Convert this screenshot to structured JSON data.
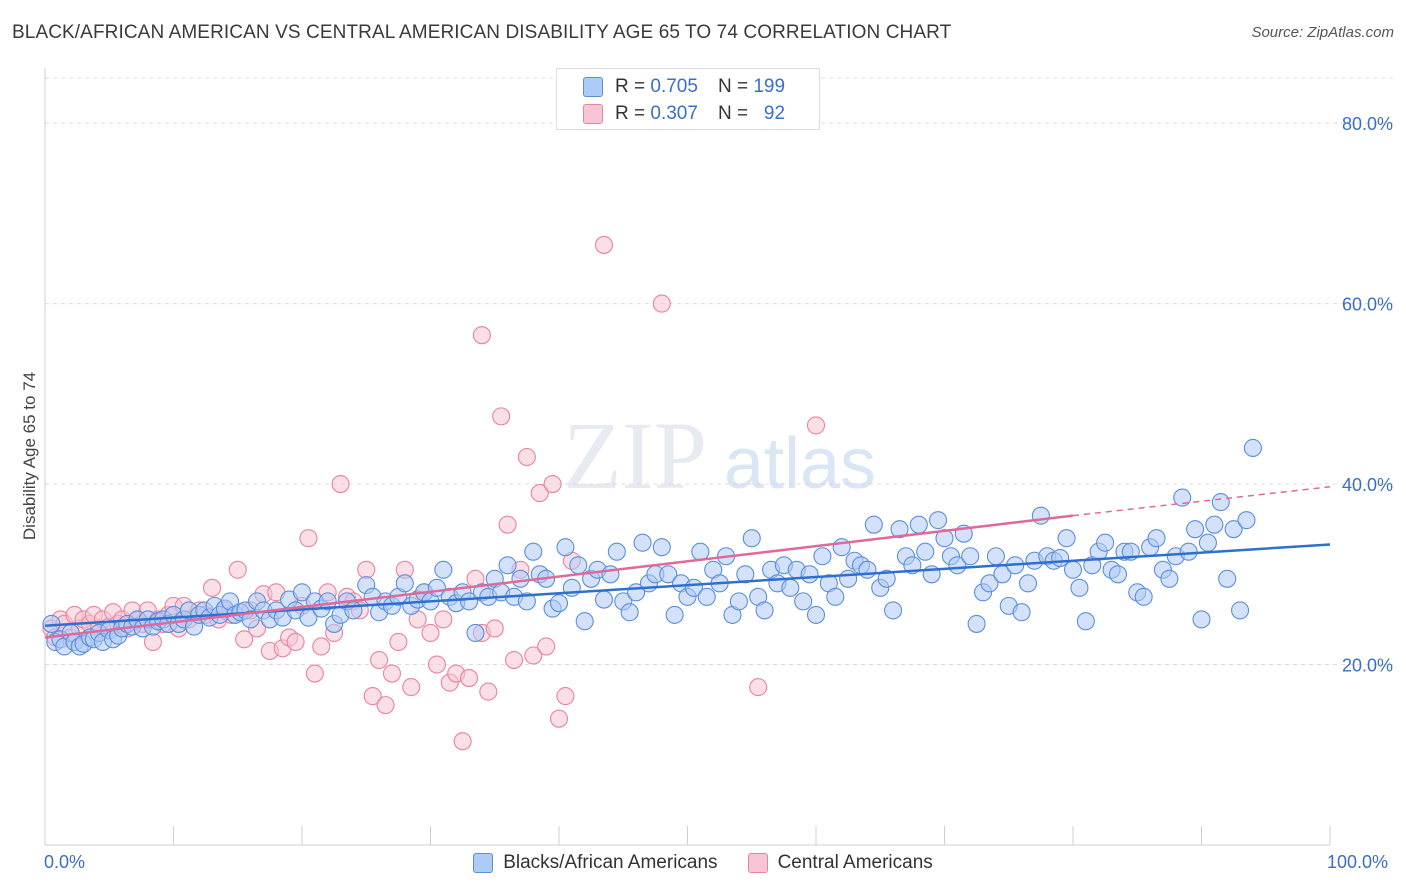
{
  "title": "BLACK/AFRICAN AMERICAN VS CENTRAL AMERICAN DISABILITY AGE 65 TO 74 CORRELATION CHART",
  "source": "Source: ZipAtlas.com",
  "watermark": {
    "zip": "ZIP",
    "atlas": "atlas"
  },
  "colors": {
    "blue_fill": "#aecbf5",
    "blue_stroke": "#5b8fd9",
    "blue_line": "#2e6fd0",
    "pink_fill": "#f7c5d4",
    "pink_stroke": "#e8839f",
    "pink_line": "#e0689a",
    "axis_label": "#3a6fc4",
    "grid": "#dddddd"
  },
  "stats": {
    "blue": {
      "r_label": "R =",
      "r_value": "0.705",
      "n_label": "N =",
      "n_value": "199"
    },
    "pink": {
      "r_label": "R =",
      "r_value": "0.307",
      "n_label": "N =",
      "n_value": "92"
    }
  },
  "chart_data": {
    "type": "scatter",
    "xlabel": "",
    "ylabel": "Disability Age 65 to 74",
    "xlim": [
      0,
      100
    ],
    "ylim": [
      0,
      85
    ],
    "x_tick_labels": [
      "0.0%",
      "100.0%"
    ],
    "y_ticks": [
      20,
      40,
      60,
      80
    ],
    "y_tick_labels": [
      "20.0%",
      "40.0%",
      "60.0%",
      "80.0%"
    ],
    "grid": true,
    "legend": {
      "position": "bottom",
      "entries": [
        "Blacks/African Americans",
        "Central Americans"
      ]
    },
    "series": [
      {
        "name": "Blacks/African Americans",
        "color": "blue",
        "trend": {
          "x": [
            0,
            100
          ],
          "y": [
            24.3,
            33.3
          ]
        },
        "points": [
          [
            0.5,
            24.5
          ],
          [
            0.8,
            22.5
          ],
          [
            1.2,
            22.8
          ],
          [
            1.5,
            22.0
          ],
          [
            2.0,
            23.5
          ],
          [
            2.3,
            22.5
          ],
          [
            2.7,
            22.0
          ],
          [
            3.0,
            22.3
          ],
          [
            3.5,
            23.0
          ],
          [
            3.8,
            22.8
          ],
          [
            4.2,
            23.5
          ],
          [
            4.5,
            22.5
          ],
          [
            5.0,
            23.8
          ],
          [
            5.3,
            22.8
          ],
          [
            5.7,
            23.2
          ],
          [
            6.0,
            24.0
          ],
          [
            6.4,
            24.5
          ],
          [
            6.8,
            24.2
          ],
          [
            7.2,
            25.0
          ],
          [
            7.6,
            24.0
          ],
          [
            8.0,
            25.0
          ],
          [
            8.4,
            24.2
          ],
          [
            8.8,
            24.8
          ],
          [
            9.2,
            25.0
          ],
          [
            9.6,
            24.5
          ],
          [
            10.0,
            25.5
          ],
          [
            10.4,
            24.5
          ],
          [
            10.8,
            25.0
          ],
          [
            11.2,
            26.0
          ],
          [
            11.6,
            24.2
          ],
          [
            12.0,
            25.5
          ],
          [
            12.4,
            26.0
          ],
          [
            12.8,
            25.2
          ],
          [
            13.2,
            26.5
          ],
          [
            13.6,
            25.5
          ],
          [
            14.0,
            26.2
          ],
          [
            14.4,
            27.0
          ],
          [
            14.8,
            25.5
          ],
          [
            15.2,
            25.8
          ],
          [
            15.6,
            26.0
          ],
          [
            16.0,
            25.0
          ],
          [
            16.5,
            27.0
          ],
          [
            17.0,
            26.0
          ],
          [
            17.5,
            25.0
          ],
          [
            18.0,
            26.0
          ],
          [
            18.5,
            25.2
          ],
          [
            19.0,
            27.2
          ],
          [
            19.5,
            26.0
          ],
          [
            20.0,
            28.0
          ],
          [
            20.5,
            25.2
          ],
          [
            21.0,
            27.0
          ],
          [
            21.5,
            26.2
          ],
          [
            22.0,
            27.0
          ],
          [
            22.5,
            24.5
          ],
          [
            23.0,
            25.5
          ],
          [
            23.5,
            27.0
          ],
          [
            24.0,
            26.0
          ],
          [
            25.0,
            28.8
          ],
          [
            25.5,
            27.5
          ],
          [
            26.0,
            25.8
          ],
          [
            26.5,
            27.0
          ],
          [
            27.0,
            26.5
          ],
          [
            27.5,
            27.5
          ],
          [
            28.0,
            29.0
          ],
          [
            28.5,
            26.5
          ],
          [
            29.0,
            27.2
          ],
          [
            29.5,
            28.0
          ],
          [
            30.0,
            27.0
          ],
          [
            30.5,
            28.5
          ],
          [
            31.0,
            30.5
          ],
          [
            31.5,
            27.5
          ],
          [
            32.0,
            26.8
          ],
          [
            32.5,
            28.0
          ],
          [
            33.0,
            27.0
          ],
          [
            33.5,
            23.5
          ],
          [
            34.0,
            28.0
          ],
          [
            34.5,
            27.5
          ],
          [
            35.0,
            29.5
          ],
          [
            35.5,
            28.0
          ],
          [
            36.0,
            31.0
          ],
          [
            36.5,
            27.5
          ],
          [
            37.0,
            29.5
          ],
          [
            37.5,
            27.0
          ],
          [
            38.0,
            32.5
          ],
          [
            38.5,
            30.0
          ],
          [
            39.0,
            29.5
          ],
          [
            39.5,
            26.2
          ],
          [
            40.0,
            26.8
          ],
          [
            40.5,
            33.0
          ],
          [
            41.0,
            28.5
          ],
          [
            41.5,
            31.0
          ],
          [
            42.0,
            24.8
          ],
          [
            42.5,
            29.5
          ],
          [
            43.0,
            30.5
          ],
          [
            43.5,
            27.2
          ],
          [
            44.0,
            30.0
          ],
          [
            44.5,
            32.5
          ],
          [
            45.0,
            27.0
          ],
          [
            45.5,
            25.8
          ],
          [
            46.0,
            28.0
          ],
          [
            46.5,
            33.5
          ],
          [
            47.0,
            29.0
          ],
          [
            47.5,
            30.0
          ],
          [
            48.0,
            33.0
          ],
          [
            48.5,
            30.0
          ],
          [
            49.0,
            25.5
          ],
          [
            49.5,
            29.0
          ],
          [
            50.0,
            27.5
          ],
          [
            50.5,
            28.5
          ],
          [
            51.0,
            32.5
          ],
          [
            51.5,
            27.5
          ],
          [
            52.0,
            30.5
          ],
          [
            52.5,
            29.0
          ],
          [
            53.0,
            32.0
          ],
          [
            53.5,
            25.5
          ],
          [
            54.0,
            27.0
          ],
          [
            54.5,
            30.0
          ],
          [
            55.0,
            34.0
          ],
          [
            55.5,
            27.5
          ],
          [
            56.0,
            26.0
          ],
          [
            56.5,
            30.5
          ],
          [
            57.0,
            29.0
          ],
          [
            57.5,
            31.0
          ],
          [
            58.0,
            28.5
          ],
          [
            58.5,
            30.5
          ],
          [
            59.0,
            27.0
          ],
          [
            59.5,
            30.0
          ],
          [
            60.0,
            25.5
          ],
          [
            60.5,
            32.0
          ],
          [
            61.0,
            29.0
          ],
          [
            61.5,
            27.5
          ],
          [
            62.0,
            33.0
          ],
          [
            62.5,
            29.5
          ],
          [
            63.0,
            31.5
          ],
          [
            63.5,
            31.0
          ],
          [
            64.0,
            30.5
          ],
          [
            64.5,
            35.5
          ],
          [
            65.0,
            28.5
          ],
          [
            65.5,
            29.5
          ],
          [
            66.0,
            26.0
          ],
          [
            66.5,
            35.0
          ],
          [
            67.0,
            32.0
          ],
          [
            67.5,
            31.0
          ],
          [
            68.0,
            35.5
          ],
          [
            68.5,
            32.5
          ],
          [
            69.0,
            30.0
          ],
          [
            69.5,
            36.0
          ],
          [
            70.0,
            34.0
          ],
          [
            70.5,
            32.0
          ],
          [
            71.0,
            31.0
          ],
          [
            71.5,
            34.5
          ],
          [
            72.0,
            32.0
          ],
          [
            72.5,
            24.5
          ],
          [
            73.0,
            28.0
          ],
          [
            73.5,
            29.0
          ],
          [
            74.0,
            32.0
          ],
          [
            74.5,
            30.0
          ],
          [
            75.0,
            26.5
          ],
          [
            75.5,
            31.0
          ],
          [
            76.0,
            25.8
          ],
          [
            76.5,
            29.0
          ],
          [
            77.0,
            31.5
          ],
          [
            77.5,
            36.5
          ],
          [
            78.0,
            32.0
          ],
          [
            78.5,
            31.5
          ],
          [
            79.0,
            31.8
          ],
          [
            79.5,
            34.0
          ],
          [
            80.0,
            30.5
          ],
          [
            80.5,
            28.5
          ],
          [
            81.0,
            24.8
          ],
          [
            81.5,
            31.0
          ],
          [
            82.0,
            32.5
          ],
          [
            82.5,
            33.5
          ],
          [
            83.0,
            30.5
          ],
          [
            83.5,
            30.0
          ],
          [
            84.0,
            32.5
          ],
          [
            84.5,
            32.5
          ],
          [
            85.0,
            28.0
          ],
          [
            85.5,
            27.5
          ],
          [
            86.0,
            33.0
          ],
          [
            86.5,
            34.0
          ],
          [
            87.0,
            30.5
          ],
          [
            87.5,
            29.5
          ],
          [
            88.0,
            32.0
          ],
          [
            88.5,
            38.5
          ],
          [
            89.0,
            32.5
          ],
          [
            89.5,
            35.0
          ],
          [
            90.0,
            25.0
          ],
          [
            90.5,
            33.5
          ],
          [
            91.0,
            35.5
          ],
          [
            91.5,
            38.0
          ],
          [
            92.0,
            29.5
          ],
          [
            92.5,
            35.0
          ],
          [
            93.0,
            26.0
          ],
          [
            93.5,
            36.0
          ],
          [
            94.0,
            44.0
          ]
        ]
      },
      {
        "name": "Central Americans",
        "color": "pink",
        "trend": {
          "x": [
            0,
            80
          ],
          "y": [
            23.0,
            36.5
          ],
          "dashed_to": {
            "x": 100,
            "y": 39.7
          }
        },
        "points": [
          [
            0.5,
            24.0
          ],
          [
            0.8,
            23.0
          ],
          [
            1.2,
            25.0
          ],
          [
            1.5,
            24.5
          ],
          [
            2.0,
            23.0
          ],
          [
            2.3,
            25.5
          ],
          [
            2.7,
            24.0
          ],
          [
            3.0,
            25.0
          ],
          [
            3.5,
            24.5
          ],
          [
            3.8,
            25.5
          ],
          [
            4.2,
            24.0
          ],
          [
            4.5,
            25.0
          ],
          [
            5.0,
            24.2
          ],
          [
            5.3,
            25.8
          ],
          [
            5.7,
            24.5
          ],
          [
            6.0,
            25.0
          ],
          [
            6.4,
            24.0
          ],
          [
            6.8,
            26.0
          ],
          [
            7.2,
            25.0
          ],
          [
            7.6,
            24.5
          ],
          [
            8.0,
            26.0
          ],
          [
            8.4,
            22.5
          ],
          [
            8.8,
            25.0
          ],
          [
            9.2,
            24.5
          ],
          [
            9.6,
            25.5
          ],
          [
            10.0,
            26.5
          ],
          [
            10.4,
            24.0
          ],
          [
            10.8,
            26.5
          ],
          [
            11.2,
            25.0
          ],
          [
            12.0,
            26.0
          ],
          [
            12.5,
            25.5
          ],
          [
            13.0,
            28.5
          ],
          [
            13.5,
            25.0
          ],
          [
            14.0,
            26.0
          ],
          [
            14.5,
            25.5
          ],
          [
            15.0,
            30.5
          ],
          [
            15.5,
            22.8
          ],
          [
            16.0,
            26.0
          ],
          [
            16.5,
            24.0
          ],
          [
            17.0,
            27.8
          ],
          [
            17.5,
            21.5
          ],
          [
            18.0,
            28.0
          ],
          [
            18.5,
            21.8
          ],
          [
            19.0,
            23.0
          ],
          [
            19.5,
            22.5
          ],
          [
            20.0,
            26.5
          ],
          [
            20.5,
            34.0
          ],
          [
            21.0,
            19.0
          ],
          [
            21.5,
            22.0
          ],
          [
            22.0,
            28.0
          ],
          [
            22.5,
            23.5
          ],
          [
            23.0,
            40.0
          ],
          [
            23.5,
            27.5
          ],
          [
            24.0,
            27.0
          ],
          [
            24.5,
            26.0
          ],
          [
            25.0,
            30.5
          ],
          [
            25.5,
            16.5
          ],
          [
            26.0,
            20.5
          ],
          [
            26.5,
            15.5
          ],
          [
            27.0,
            19.0
          ],
          [
            27.5,
            22.5
          ],
          [
            28.0,
            30.5
          ],
          [
            28.5,
            17.5
          ],
          [
            29.0,
            25.0
          ],
          [
            29.5,
            28.0
          ],
          [
            30.0,
            23.5
          ],
          [
            30.5,
            20.0
          ],
          [
            31.0,
            25.0
          ],
          [
            31.5,
            18.0
          ],
          [
            32.0,
            19.0
          ],
          [
            32.5,
            11.5
          ],
          [
            33.0,
            18.5
          ],
          [
            33.5,
            29.5
          ],
          [
            34.0,
            23.5
          ],
          [
            34.5,
            17.0
          ],
          [
            35.0,
            24.0
          ],
          [
            35.5,
            47.5
          ],
          [
            36.0,
            35.5
          ],
          [
            36.5,
            20.5
          ],
          [
            37.0,
            30.5
          ],
          [
            37.5,
            43.0
          ],
          [
            38.0,
            21.0
          ],
          [
            38.5,
            39.0
          ],
          [
            39.0,
            22.0
          ],
          [
            39.5,
            40.0
          ],
          [
            40.0,
            14.0
          ],
          [
            40.5,
            16.5
          ],
          [
            41.0,
            31.5
          ],
          [
            34.0,
            56.5
          ],
          [
            48.0,
            60.0
          ],
          [
            60.0,
            46.5
          ],
          [
            43.5,
            66.5
          ],
          [
            55.5,
            17.5
          ]
        ]
      }
    ]
  }
}
